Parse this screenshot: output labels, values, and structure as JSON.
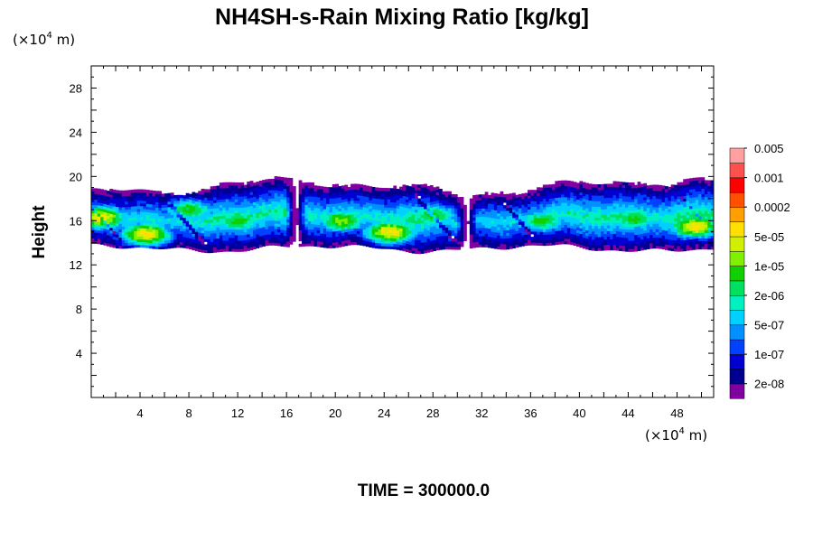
{
  "chart_data": {
    "type": "heatmap",
    "title": "NH4SH-s-Rain Mixing Ratio [kg/kg]",
    "ylabel": "Height",
    "xlabel": "",
    "x_unit": {
      "prefix": "(×10",
      "exponent": "4",
      "suffix": " m)"
    },
    "y_unit": {
      "prefix": "(×10",
      "exponent": "4",
      "suffix": " m)"
    },
    "xlim": [
      0,
      51
    ],
    "ylim": [
      0,
      30
    ],
    "x_ticks": [
      4,
      8,
      12,
      16,
      20,
      24,
      28,
      32,
      36,
      40,
      44,
      48
    ],
    "x_tick_labels": [
      "4",
      "8",
      "12",
      "16",
      "20",
      "24",
      "28",
      "32",
      "36",
      "40",
      "44",
      "48"
    ],
    "y_ticks": [
      4,
      8,
      12,
      16,
      20,
      24,
      28
    ],
    "y_tick_labels": [
      "4",
      "8",
      "12",
      "16",
      "20",
      "24",
      "28"
    ],
    "colorbar": {
      "colors": [
        "#8000a0",
        "#000090",
        "#0000d0",
        "#0040ff",
        "#0090ff",
        "#00d0ff",
        "#00f0c0",
        "#00e060",
        "#10d000",
        "#80f000",
        "#d0f000",
        "#ffe000",
        "#ffa000",
        "#ff5000",
        "#ff0000",
        "#ff5050",
        "#ffa0a0"
      ],
      "labels": [
        "2e-08",
        "1e-07",
        "5e-07",
        "2e-06",
        "1e-05",
        "5e-05",
        "0.0002",
        "0.001",
        "0.005"
      ],
      "label_levels": [
        1,
        3,
        5,
        7,
        9,
        11,
        13,
        15,
        17
      ]
    },
    "cloud_band": {
      "base_height_range": [
        13,
        14
      ],
      "top_height_range": [
        18,
        20
      ],
      "cores": [
        {
          "x": 0.8,
          "y": 16.3,
          "level": 12
        },
        {
          "x": 4.5,
          "y": 14.8,
          "level": 12
        },
        {
          "x": 8.0,
          "y": 17.0,
          "level": 9
        },
        {
          "x": 12.0,
          "y": 16.0,
          "level": 9
        },
        {
          "x": 20.5,
          "y": 16.0,
          "level": 10
        },
        {
          "x": 24.5,
          "y": 15.0,
          "level": 12
        },
        {
          "x": 28.0,
          "y": 16.5,
          "level": 9
        },
        {
          "x": 37.0,
          "y": 16.0,
          "level": 9
        },
        {
          "x": 44.5,
          "y": 16.2,
          "level": 9
        },
        {
          "x": 49.5,
          "y": 15.5,
          "level": 12
        }
      ],
      "gaps_x": [
        16.8,
        30.8
      ]
    },
    "grid": false,
    "legend": "right"
  },
  "footer": {
    "time_label": "TIME = 300000.0"
  }
}
